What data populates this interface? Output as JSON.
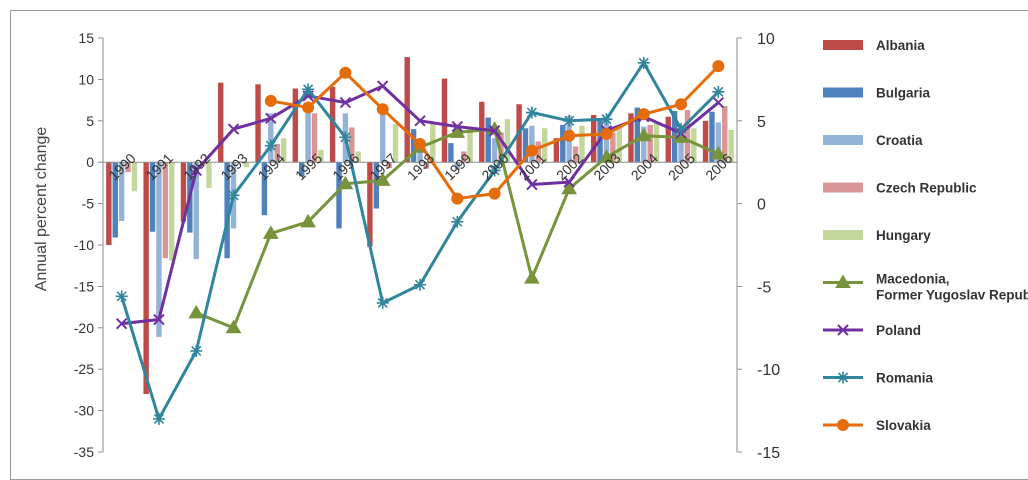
{
  "chart_data": {
    "type": "bar+line",
    "title": "",
    "ylabel_left": "Annual percent change",
    "ylabel_right": "",
    "xlabel": "",
    "categories": [
      "1990",
      "1991",
      "1992",
      "1993",
      "1994",
      "1995",
      "1996",
      "1997",
      "1998",
      "1999",
      "2000",
      "2001",
      "2002",
      "2003",
      "2004",
      "2005",
      "2006"
    ],
    "ylim_left": [
      -35,
      15
    ],
    "yticks_left": [
      15,
      10,
      5,
      0,
      -5,
      -10,
      -15,
      -20,
      -25,
      -30,
      -35
    ],
    "ylim_right": [
      -15,
      10
    ],
    "yticks_right": [
      10,
      5,
      0,
      -5,
      -10,
      -15
    ],
    "grid": false,
    "legend_position": "right",
    "bar_series": [
      {
        "name": "Albania",
        "color": "#be4b48",
        "values": [
          -10,
          -28,
          -7.2,
          9.6,
          9.4,
          8.9,
          9.1,
          -10.2,
          12.7,
          10.1,
          7.3,
          7.0,
          2.9,
          5.7,
          5.9,
          5.5,
          5.0
        ]
      },
      {
        "name": "Bulgaria",
        "color": "#4f81bd",
        "values": [
          -9.1,
          -8.4,
          -8.5,
          -11.6,
          -6.4,
          -1.7,
          -8.0,
          -5.6,
          4.0,
          2.3,
          5.4,
          4.1,
          4.5,
          5.0,
          6.6,
          6.2,
          6.1
        ]
      },
      {
        "name": "Croatia",
        "color": "#95b3d7",
        "values": [
          -7.1,
          -21.1,
          -11.7,
          -8.0,
          5.9,
          6.8,
          5.9,
          6.8,
          2.5,
          -0.9,
          2.9,
          4.4,
          5.6,
          5.3,
          4.3,
          4.3,
          4.8
        ]
      },
      {
        "name": "Czech Republic",
        "color": "#d99694",
        "values": [
          -1.2,
          -11.6,
          -0.5,
          0.1,
          2.2,
          5.9,
          4.2,
          -0.7,
          -0.8,
          1.3,
          3.6,
          2.5,
          1.9,
          3.6,
          4.5,
          6.3,
          6.8
        ]
      },
      {
        "name": "Hungary",
        "color": "#c3d69b",
        "values": [
          -3.5,
          -11.9,
          -3.1,
          -0.6,
          2.9,
          1.5,
          1.3,
          4.6,
          4.9,
          4.2,
          5.2,
          4.1,
          4.4,
          4.2,
          4.8,
          4.1,
          3.9
        ]
      }
    ],
    "line_series": [
      {
        "name": "Macedonia, Former Yugoslav Republic of",
        "axis": "right",
        "color": "#77933c",
        "marker": "triangle",
        "values": [
          null,
          null,
          -6.6,
          -7.5,
          -1.8,
          -1.1,
          1.2,
          1.4,
          3.4,
          4.3,
          4.5,
          -4.5,
          0.9,
          2.8,
          4.1,
          4.0,
          3.0
        ]
      },
      {
        "name": "Poland",
        "axis": "left",
        "color": "#7030a0",
        "marker": "x",
        "values": [
          -19.5,
          -19.0,
          -1.0,
          4.0,
          5.3,
          8.0,
          7.2,
          9.2,
          5.0,
          4.3,
          3.8,
          -2.7,
          -2.4,
          3.8,
          5.5,
          3.5,
          7.2
        ]
      },
      {
        "name": "Romania",
        "axis": "left",
        "color": "#31859c",
        "marker": "star",
        "values": [
          -16.2,
          -31.0,
          -22.8,
          -4.0,
          2.0,
          8.8,
          3.0,
          -17.0,
          -14.8,
          -7.2,
          -1.0,
          6.0,
          5.0,
          5.2,
          12.0,
          4.0,
          8.5
        ]
      },
      {
        "name": "Slovakia",
        "axis": "right",
        "color": "#e46c0a",
        "marker": "circle",
        "values": [
          null,
          null,
          null,
          null,
          6.2,
          5.8,
          7.9,
          5.7,
          3.6,
          0.3,
          0.6,
          3.2,
          4.1,
          4.2,
          5.4,
          6.0,
          8.3
        ]
      }
    ]
  }
}
